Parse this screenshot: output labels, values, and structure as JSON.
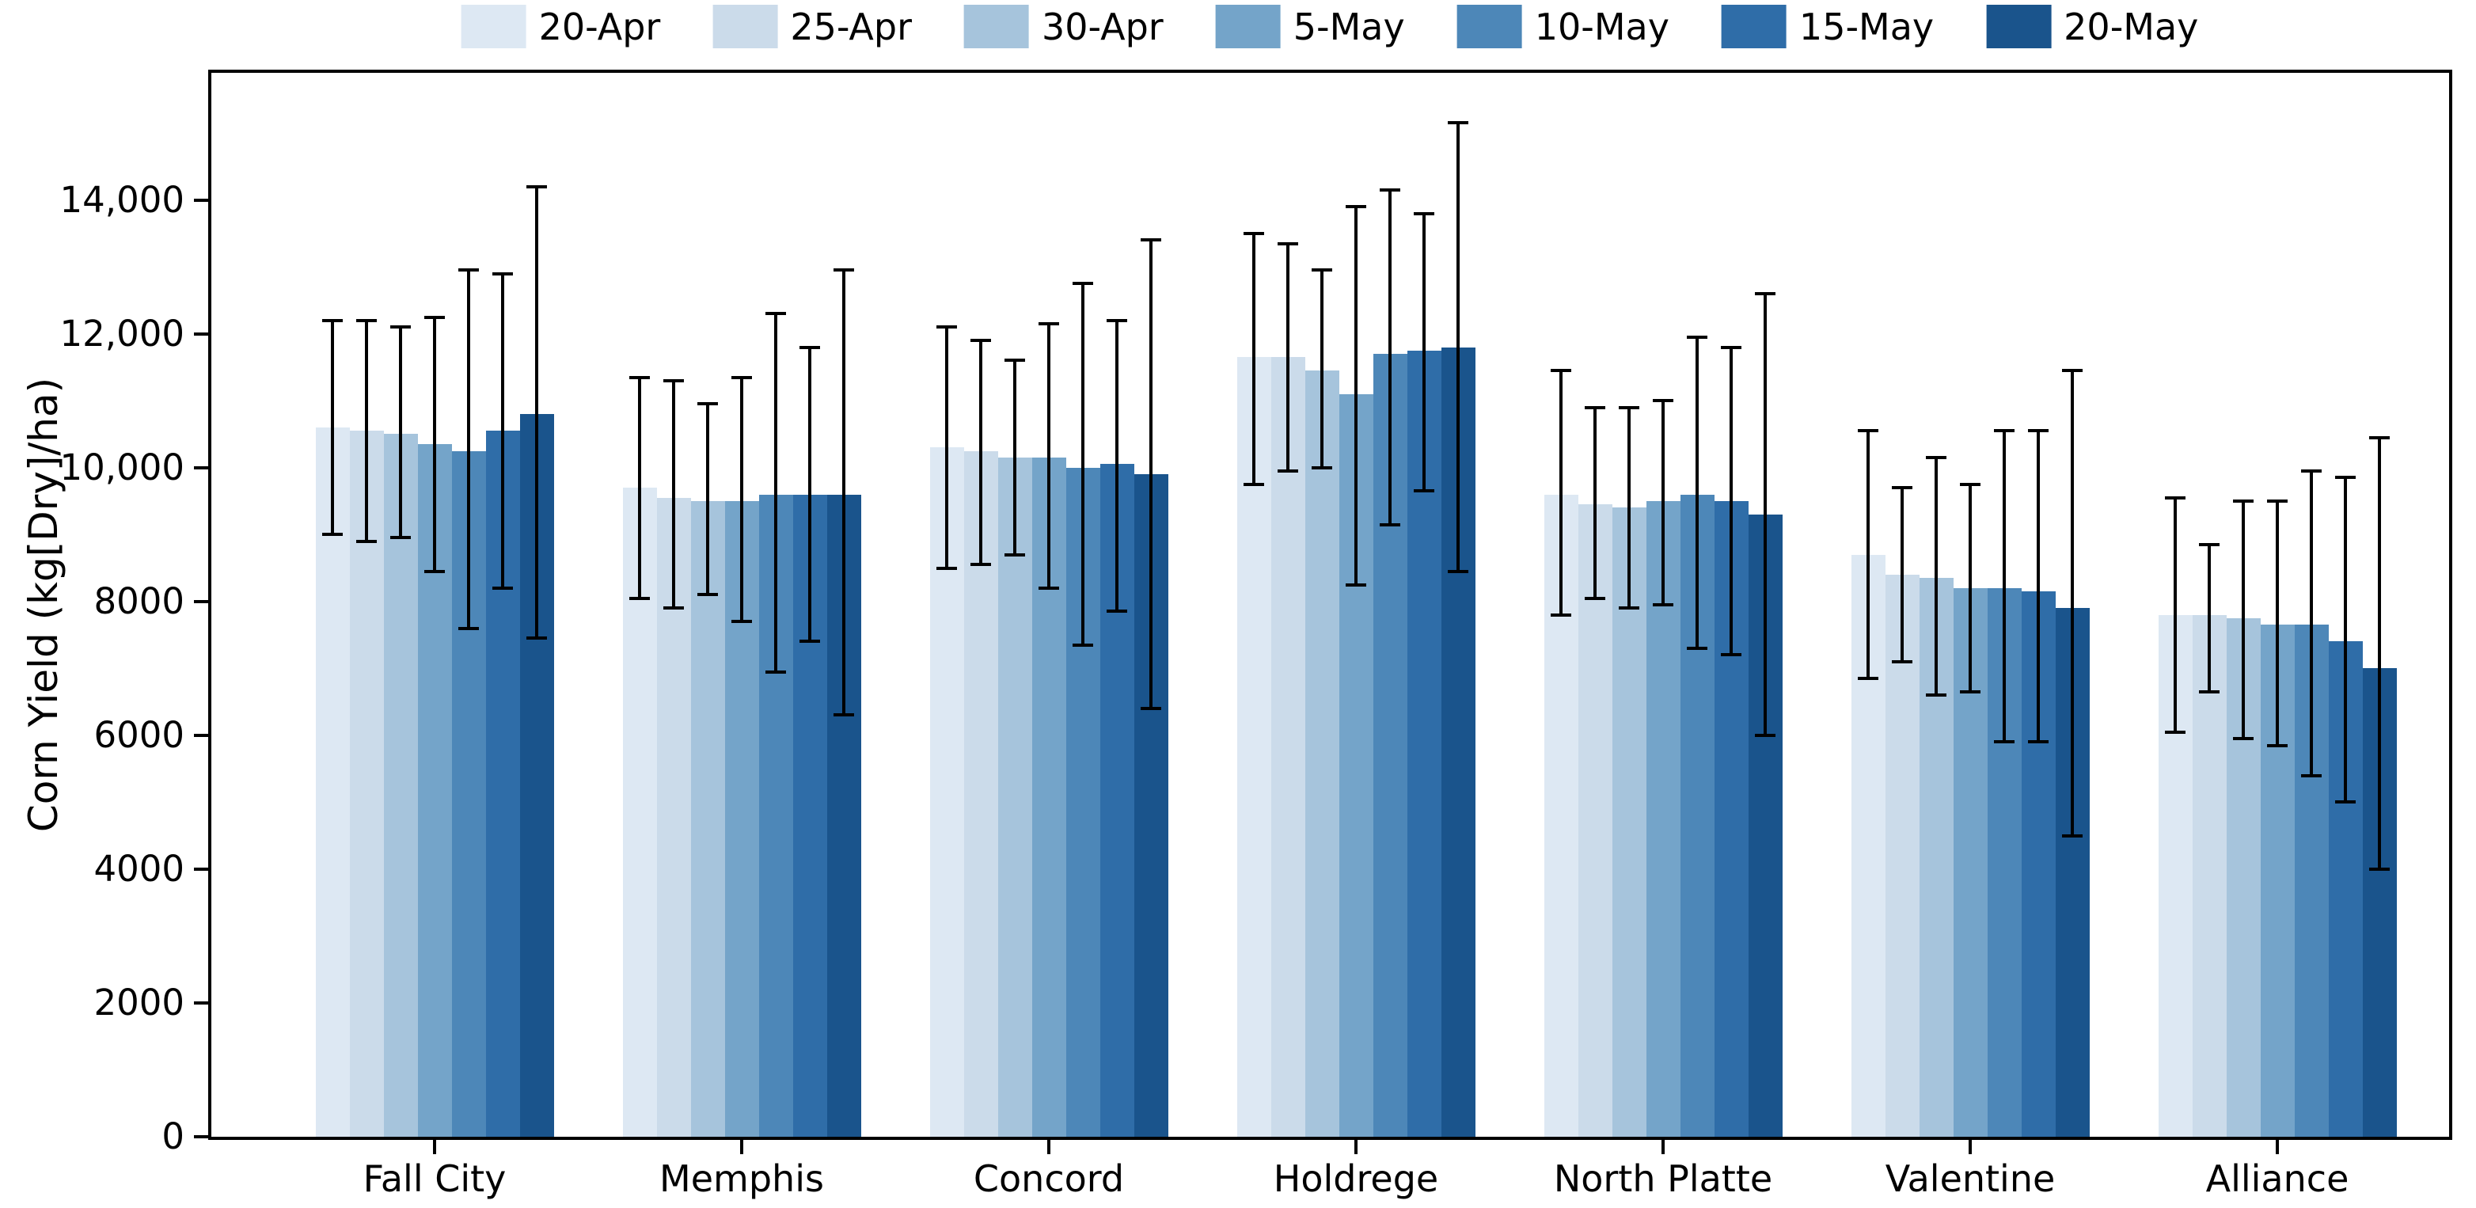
{
  "chart_data": {
    "type": "bar",
    "title": "",
    "xlabel": "",
    "ylabel": "Corn Yield (kg[Dry]/ha)",
    "ylim": [
      0,
      15900
    ],
    "grid": false,
    "legend_position": "top-center",
    "error_bar_color": "#000000",
    "categories": [
      "Fall City",
      "Memphis",
      "Concord",
      "Holdrege",
      "North Platte",
      "Valentine",
      "Alliance"
    ],
    "ytick_values": [
      0,
      2000,
      4000,
      6000,
      8000,
      10000,
      12000,
      14000
    ],
    "ytick_labels": [
      "0",
      "2000",
      "4000",
      "6000",
      "8000",
      "10,000",
      "12,000",
      "14,000"
    ],
    "series": [
      {
        "name": "20-Apr",
        "color": "#dde8f3",
        "values": [
          10600,
          9700,
          10300,
          11650,
          9600,
          8700,
          7800
        ],
        "err_top": [
          12200,
          11350,
          12100,
          13500,
          11450,
          10550,
          9550
        ],
        "err_bottom": [
          9000,
          8050,
          8500,
          9750,
          7800,
          6850,
          6050
        ]
      },
      {
        "name": "25-Apr",
        "color": "#cbdbea",
        "values": [
          10550,
          9550,
          10250,
          11650,
          9450,
          8400,
          7800
        ],
        "err_top": [
          12200,
          11300,
          11900,
          13350,
          10900,
          9700,
          8850
        ],
        "err_bottom": [
          8900,
          7900,
          8550,
          9950,
          8050,
          7100,
          6650
        ]
      },
      {
        "name": "30-Apr",
        "color": "#a6c4dc",
        "values": [
          10500,
          9500,
          10150,
          11450,
          9400,
          8350,
          7750
        ],
        "err_top": [
          12100,
          10950,
          11600,
          12950,
          10900,
          10150,
          9500
        ],
        "err_bottom": [
          8950,
          8100,
          8700,
          10000,
          7900,
          6600,
          5950
        ]
      },
      {
        "name": "5-May",
        "color": "#74a4c9",
        "values": [
          10350,
          9500,
          10150,
          11100,
          9500,
          8200,
          7650
        ],
        "err_top": [
          12250,
          11350,
          12150,
          13900,
          11000,
          9750,
          9500
        ],
        "err_bottom": [
          8450,
          7700,
          8200,
          8250,
          7950,
          6650,
          5850
        ]
      },
      {
        "name": "10-May",
        "color": "#4d87b8",
        "values": [
          10250,
          9600,
          10000,
          11700,
          9600,
          8200,
          7650
        ],
        "err_top": [
          12950,
          12300,
          12750,
          14150,
          11950,
          10550,
          9950
        ],
        "err_bottom": [
          7600,
          6950,
          7350,
          9150,
          7300,
          5900,
          5400
        ]
      },
      {
        "name": "15-May",
        "color": "#2f6da8",
        "values": [
          10550,
          9600,
          10050,
          11750,
          9500,
          8150,
          7400
        ],
        "err_top": [
          12900,
          11800,
          12200,
          13800,
          11800,
          10550,
          9850
        ],
        "err_bottom": [
          8200,
          7400,
          7850,
          9650,
          7200,
          5900,
          5000
        ]
      },
      {
        "name": "20-May",
        "color": "#1a548c",
        "values": [
          10800,
          9600,
          9900,
          11800,
          9300,
          7900,
          7000
        ],
        "err_top": [
          14200,
          12950,
          13400,
          15150,
          12600,
          11450,
          10450
        ],
        "err_bottom": [
          7450,
          6300,
          6400,
          8450,
          6000,
          4500,
          4000
        ]
      }
    ]
  }
}
